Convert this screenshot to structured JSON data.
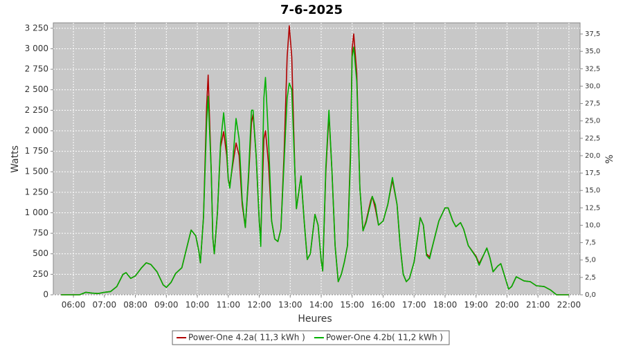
{
  "chart_data": {
    "type": "line",
    "title": "7-6-2025",
    "x_label": "Heures",
    "y_label": "Watts",
    "y2_label": "%",
    "xlim": [
      5.35,
      22.36
    ],
    "xticks": [
      {
        "value": 6,
        "label": "06:00"
      },
      {
        "value": 7,
        "label": "07:00"
      },
      {
        "value": 8,
        "label": "08:00"
      },
      {
        "value": 9,
        "label": "09:00"
      },
      {
        "value": 10,
        "label": "10:00"
      },
      {
        "value": 11,
        "label": "11:00"
      },
      {
        "value": 12,
        "label": "12:00"
      },
      {
        "value": 13,
        "label": "13:00"
      },
      {
        "value": 14,
        "label": "14:00"
      },
      {
        "value": 15,
        "label": "15:00"
      },
      {
        "value": 16,
        "label": "16:00"
      },
      {
        "value": 17,
        "label": "17:00"
      },
      {
        "value": 18,
        "label": "18:00"
      },
      {
        "value": 19,
        "label": "19:00"
      },
      {
        "value": 20,
        "label": "20:00"
      },
      {
        "value": 21,
        "label": "21:00"
      },
      {
        "value": 22,
        "label": "22:00"
      }
    ],
    "ylim": [
      0,
      3316
    ],
    "yticks": [
      0,
      250,
      500,
      750,
      {
        "value": 1000,
        "label": "1 000"
      },
      {
        "value": 1250,
        "label": "1 250"
      },
      {
        "value": 1500,
        "label": "1 500"
      },
      {
        "value": 1750,
        "label": "1 750"
      },
      {
        "value": 2000,
        "label": "2 000"
      },
      {
        "value": 2250,
        "label": "2 250"
      },
      {
        "value": 2500,
        "label": "2 500"
      },
      {
        "value": 2750,
        "label": "2 750"
      },
      {
        "value": 3000,
        "label": "3 000"
      },
      {
        "value": 3250,
        "label": "3 250"
      }
    ],
    "y2lim": [
      0,
      39.1
    ],
    "y2ticks": [
      {
        "value": 0,
        "label": "0,0"
      },
      {
        "value": 2.5,
        "label": "2,5"
      },
      {
        "value": 5,
        "label": "5,0"
      },
      {
        "value": 7.5,
        "label": "7,5"
      },
      {
        "value": 10,
        "label": "10,0"
      },
      {
        "value": 12.5,
        "label": "12,5"
      },
      {
        "value": 15,
        "label": "15,0"
      },
      {
        "value": 17.5,
        "label": "17,5"
      },
      {
        "value": 20,
        "label": "20,0"
      },
      {
        "value": 22.5,
        "label": "22,5"
      },
      {
        "value": 25,
        "label": "25,0"
      },
      {
        "value": 27.5,
        "label": "27,5"
      },
      {
        "value": 30,
        "label": "30,0"
      },
      {
        "value": 32.5,
        "label": "32,5"
      },
      {
        "value": 35,
        "label": "35,0"
      },
      {
        "value": 37.5,
        "label": "37,5"
      }
    ],
    "grid": true,
    "legend": "bottom",
    "x": [
      5.6,
      6.2,
      6.4,
      6.6,
      6.8,
      7.0,
      7.2,
      7.4,
      7.6,
      7.7,
      7.85,
      8.0,
      8.2,
      8.35,
      8.5,
      8.7,
      8.9,
      9.0,
      9.15,
      9.3,
      9.5,
      9.65,
      9.8,
      9.95,
      10.05,
      10.1,
      10.2,
      10.3,
      10.35,
      10.45,
      10.5,
      10.55,
      10.65,
      10.75,
      10.85,
      10.95,
      11.0,
      11.05,
      11.15,
      11.25,
      11.35,
      11.45,
      11.55,
      11.65,
      11.75,
      11.8,
      11.9,
      12.0,
      12.05,
      12.15,
      12.2,
      12.3,
      12.4,
      12.5,
      12.6,
      12.7,
      12.8,
      12.9,
      12.97,
      13.05,
      13.15,
      13.2,
      13.35,
      13.45,
      13.55,
      13.65,
      13.8,
      13.9,
      14.0,
      14.05,
      14.15,
      14.25,
      14.35,
      14.45,
      14.55,
      14.65,
      14.75,
      14.85,
      14.95,
      15.0,
      15.05,
      15.15,
      15.25,
      15.35,
      15.45,
      15.6,
      15.65,
      15.75,
      15.85,
      16.0,
      16.15,
      16.3,
      16.45,
      16.55,
      16.65,
      16.75,
      16.85,
      17.0,
      17.15,
      17.2,
      17.3,
      17.4,
      17.5,
      17.6,
      17.8,
      18.0,
      18.1,
      18.25,
      18.35,
      18.5,
      18.6,
      18.75,
      19.0,
      19.1,
      19.25,
      19.35,
      19.45,
      19.55,
      19.7,
      19.8,
      19.9,
      20.05,
      20.15,
      20.3,
      20.4,
      20.55,
      20.75,
      20.95,
      21.2,
      21.4,
      21.6,
      22.0
    ],
    "series": [
      {
        "name": "Power-One 4.2a( 11,3 kWh )",
        "color": "#b00000",
        "values": [
          0,
          0,
          30,
          20,
          15,
          30,
          40,
          100,
          250,
          270,
          200,
          230,
          330,
          390,
          370,
          280,
          120,
          90,
          150,
          260,
          330,
          560,
          790,
          720,
          530,
          390,
          950,
          2300,
          2680,
          1500,
          700,
          500,
          1000,
          1800,
          1990,
          1700,
          1400,
          1340,
          1600,
          1850,
          1700,
          1100,
          820,
          1400,
          2100,
          2200,
          1700,
          900,
          700,
          1900,
          2000,
          1600,
          900,
          680,
          650,
          800,
          1700,
          2900,
          3280,
          2900,
          1500,
          1050,
          1450,
          900,
          430,
          500,
          980,
          850,
          420,
          290,
          1500,
          2200,
          1500,
          600,
          160,
          250,
          400,
          600,
          1800,
          3000,
          3180,
          2700,
          1300,
          780,
          900,
          1150,
          1200,
          1050,
          850,
          900,
          1100,
          1400,
          1100,
          600,
          250,
          160,
          200,
          400,
          800,
          940,
          850,
          500,
          460,
          600,
          900,
          1060,
          1060,
          900,
          830,
          880,
          800,
          600,
          470,
          380,
          490,
          570,
          450,
          280,
          350,
          380,
          260,
          70,
          100,
          220,
          200,
          170,
          160,
          110,
          100,
          60,
          0,
          0
        ]
      },
      {
        "name": "Power-One 4.2b( 11,2 kWh )",
        "color": "#00b000",
        "values": [
          0,
          0,
          30,
          20,
          15,
          30,
          40,
          100,
          250,
          270,
          200,
          230,
          330,
          390,
          370,
          280,
          120,
          90,
          150,
          260,
          330,
          560,
          790,
          720,
          530,
          390,
          950,
          2100,
          2420,
          1500,
          700,
          500,
          1000,
          1850,
          2220,
          1800,
          1400,
          1300,
          1650,
          2150,
          1900,
          1150,
          820,
          1450,
          2250,
          2250,
          1700,
          900,
          590,
          2400,
          2650,
          1900,
          900,
          680,
          650,
          800,
          1600,
          2400,
          2580,
          2500,
          1500,
          1050,
          1450,
          900,
          430,
          500,
          980,
          850,
          420,
          290,
          1550,
          2250,
          1500,
          600,
          160,
          250,
          400,
          600,
          1700,
          2900,
          3020,
          2600,
          1300,
          780,
          880,
          1120,
          1200,
          1100,
          850,
          900,
          1100,
          1430,
          1100,
          600,
          250,
          160,
          200,
          400,
          800,
          940,
          850,
          480,
          440,
          600,
          900,
          1060,
          1060,
          900,
          830,
          880,
          800,
          600,
          460,
          360,
          490,
          570,
          450,
          280,
          350,
          380,
          260,
          70,
          100,
          220,
          200,
          170,
          160,
          110,
          100,
          60,
          0,
          0
        ]
      }
    ]
  }
}
